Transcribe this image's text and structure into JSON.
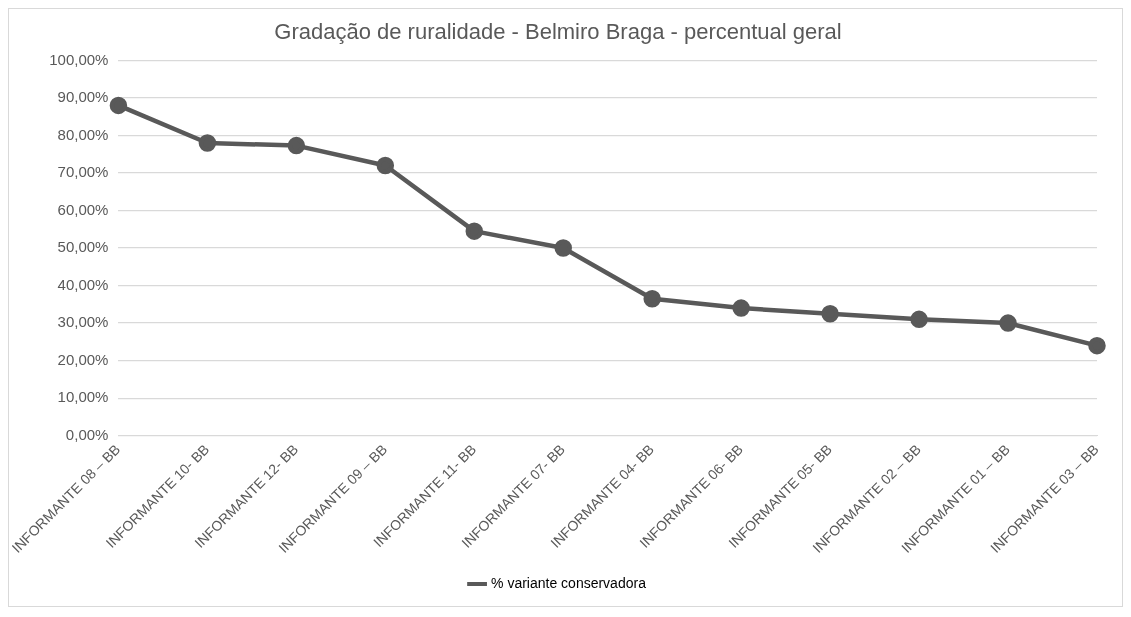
{
  "chart_data": {
    "type": "line",
    "title": "Gradação de ruralidade - Belmiro Braga - percentual geral",
    "categories": [
      "INFORMANTE 08 – BB",
      "INFORMANTE 10- BB",
      "INFORMANTE 12- BB",
      "INFORMANTE 09 – BB",
      "INFORMANTE 11- BB",
      "INFORMANTE 07- BB",
      "INFORMANTE 04- BB",
      "INFORMANTE 06- BB",
      "INFORMANTE 05- BB",
      "INFORMANTE 02 – BB",
      "INFORMANTE 01 – BB",
      "INFORMANTE 03 – BB"
    ],
    "series": [
      {
        "name": "% variante conservadora",
        "color": "#595959",
        "values": [
          88,
          78,
          77.3,
          72,
          54.5,
          50,
          36.5,
          34,
          32.5,
          31,
          30,
          24
        ]
      }
    ],
    "ylim": [
      0,
      100
    ],
    "yticks": [
      {
        "value": 0,
        "label": "0,00%"
      },
      {
        "value": 10,
        "label": "10,00%"
      },
      {
        "value": 20,
        "label": "20,00%"
      },
      {
        "value": 30,
        "label": "30,00%"
      },
      {
        "value": 40,
        "label": "40,00%"
      },
      {
        "value": 50,
        "label": "50,00%"
      },
      {
        "value": 60,
        "label": "60,00%"
      },
      {
        "value": 70,
        "label": "70,00%"
      },
      {
        "value": 80,
        "label": "80,00%"
      },
      {
        "value": 90,
        "label": "90,00%"
      },
      {
        "value": 100,
        "label": "100,00%"
      }
    ],
    "grid": "y",
    "legend": "bottom",
    "marker": "circle",
    "line_style": "solid"
  }
}
